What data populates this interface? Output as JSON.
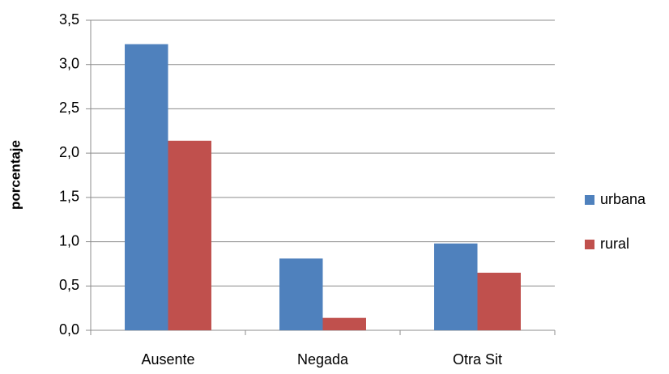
{
  "chart_data": {
    "type": "bar",
    "y_label": "porcentaje",
    "categories": [
      "Ausente",
      "Negada",
      "Otra Sit"
    ],
    "series": [
      {
        "name": "urbana",
        "color": "#4f81bd",
        "values": [
          3.23,
          0.81,
          0.98
        ]
      },
      {
        "name": "rural",
        "color": "#c0504d",
        "values": [
          2.14,
          0.14,
          0.65
        ]
      }
    ],
    "ylim": [
      0,
      3.5
    ],
    "yticks": [
      {
        "value": 0,
        "label": "0,0"
      },
      {
        "value": 0.5,
        "label": "0,5"
      },
      {
        "value": 1,
        "label": "1,0"
      },
      {
        "value": 1.5,
        "label": "1,5"
      },
      {
        "value": 2,
        "label": "2,0"
      },
      {
        "value": 2.5,
        "label": "2,5"
      },
      {
        "value": 3,
        "label": "3,0"
      },
      {
        "value": 3.5,
        "label": "3,5"
      }
    ],
    "grid": true,
    "legend": "right"
  }
}
